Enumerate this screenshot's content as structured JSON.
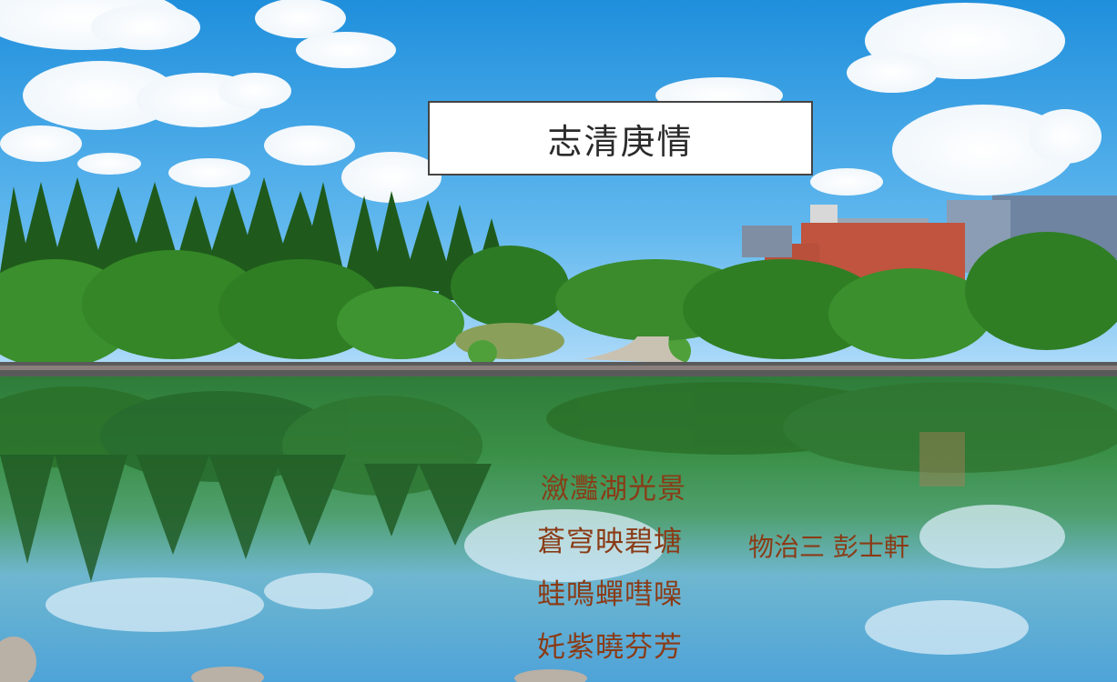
{
  "title": "志清庚情",
  "poem": {
    "lines": [
      "瀲灩湖光景",
      "蒼穹映碧塘",
      "蛙鳴蟬嘒噪",
      "奼紫曉芬芳"
    ]
  },
  "author": "物治三 彭士軒",
  "colors": {
    "sky_top": "#2f9be0",
    "sky_bottom": "#a9d8f4",
    "tree_dark": "#1f5a1c",
    "tree_light": "#3d8f2c",
    "lake": "#3b8f4a",
    "building": "#c0543e",
    "poem_text": "#8a3b16",
    "title_border": "#444444"
  }
}
